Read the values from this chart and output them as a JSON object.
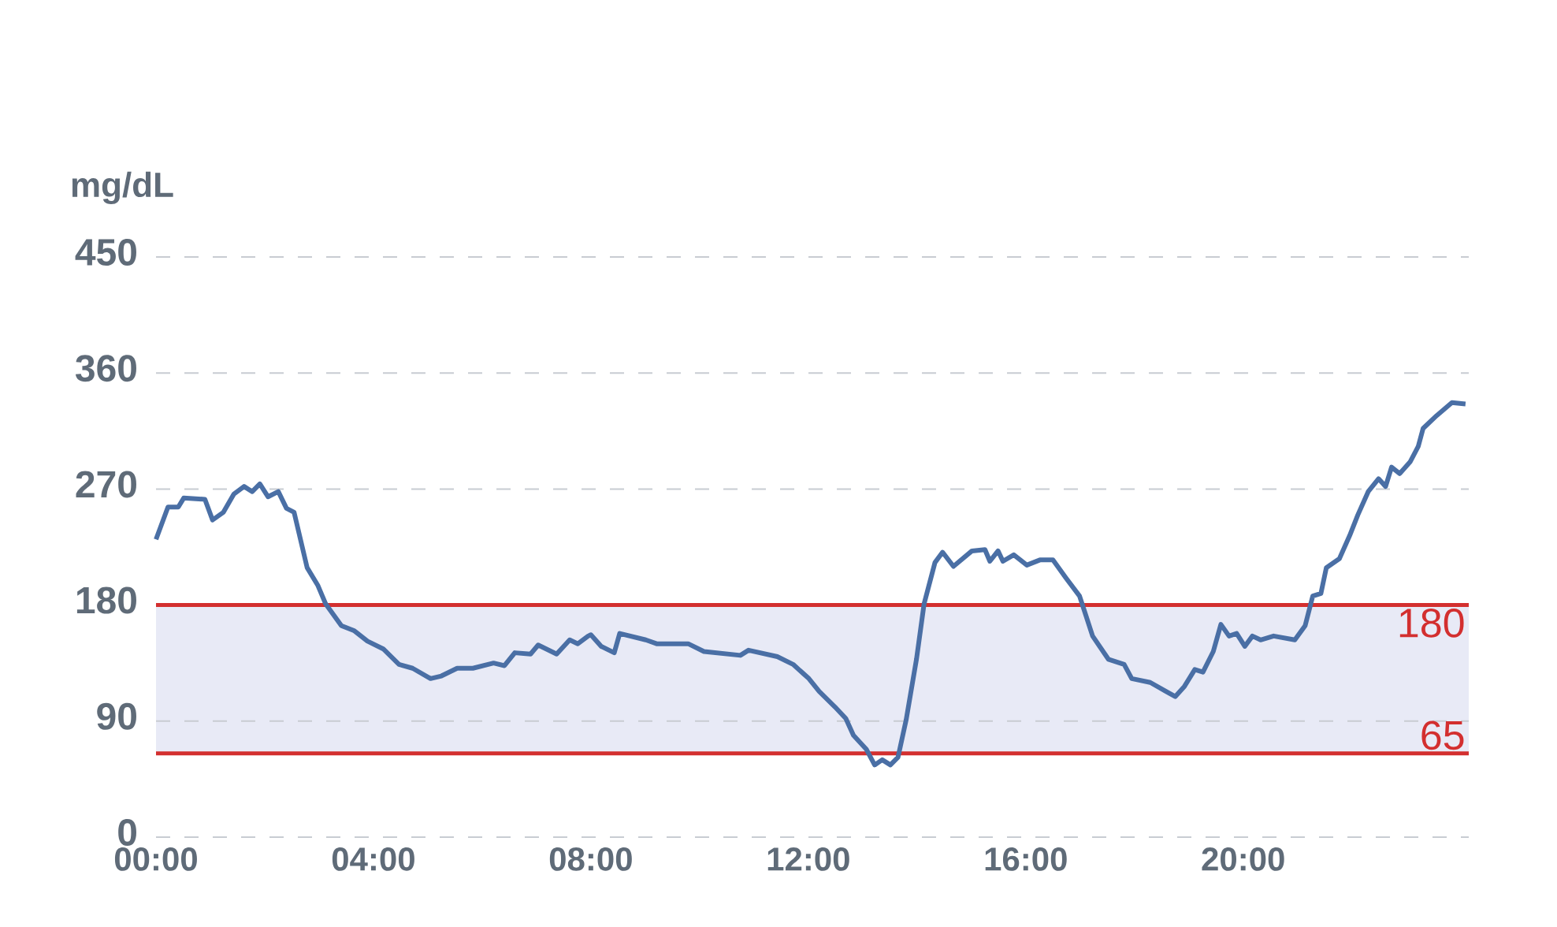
{
  "chart_data": {
    "type": "line",
    "ylabel": "mg/dL",
    "x": [
      0,
      0.22,
      0.41,
      0.51,
      0.9,
      1.04,
      1.24,
      1.43,
      1.62,
      1.77,
      1.91,
      2.06,
      2.25,
      2.4,
      2.54,
      2.78,
      2.98,
      3.12,
      3.41,
      3.65,
      3.89,
      4.18,
      4.47,
      4.72,
      5.05,
      5.25,
      5.54,
      5.83,
      6.21,
      6.41,
      6.6,
      6.89,
      7.03,
      7.37,
      7.61,
      7.76,
      7.95,
      8.0,
      8.19,
      8.43,
      8.53,
      9.01,
      9.21,
      9.79,
      10.08,
      10.75,
      10.9,
      11.43,
      11.72,
      12.01,
      12.2,
      12.49,
      12.69,
      12.83,
      13.07,
      13.22,
      13.36,
      13.51,
      13.65,
      13.8,
      13.99,
      14.13,
      14.33,
      14.47,
      14.67,
      15.01,
      15.25,
      15.34,
      15.49,
      15.58,
      15.78,
      16.02,
      16.26,
      16.5,
      16.74,
      16.99,
      17.23,
      17.52,
      17.81,
      17.95,
      18.29,
      18.58,
      18.75,
      18.92,
      19.11,
      19.26,
      19.45,
      19.59,
      19.74,
      19.88,
      20.03,
      20.17,
      20.32,
      20.56,
      20.95,
      21.14,
      21.28,
      21.43,
      21.53,
      21.77,
      21.96,
      22.11,
      22.3,
      22.49,
      22.62,
      22.73,
      22.88,
      23.07,
      23.22,
      23.31,
      23.56,
      23.84,
      24.09
    ],
    "series": [
      {
        "color": "#4a6fa5",
        "values": [
          231,
          256,
          256,
          263,
          262,
          246,
          252,
          266,
          272,
          268,
          274,
          264,
          268,
          255,
          252,
          209,
          195,
          181,
          164,
          160,
          152,
          146,
          134,
          131,
          123,
          125,
          131,
          131,
          135,
          133,
          143,
          142,
          149,
          142,
          153,
          150,
          156,
          157,
          148,
          143,
          158,
          153,
          150,
          150,
          144,
          141,
          145,
          140,
          134,
          123,
          113,
          101,
          92,
          79,
          68,
          56,
          60,
          56,
          62,
          91,
          138,
          181,
          213,
          221,
          210,
          222,
          223,
          214,
          222,
          214,
          219,
          211,
          215,
          215,
          201,
          187,
          156,
          138,
          134,
          123,
          120,
          113,
          109,
          117,
          130,
          128,
          144,
          165,
          156,
          158,
          148,
          156,
          153,
          156,
          153,
          164,
          187,
          189,
          209,
          216,
          234,
          250,
          268,
          278,
          272,
          287,
          282,
          291,
          303,
          317,
          327,
          337,
          336
        ]
      }
    ],
    "xlim": [
      0,
      24.15
    ],
    "ylim": [
      0,
      450
    ],
    "xticks": [
      {
        "value": 0,
        "label": "00:00"
      },
      {
        "value": 4,
        "label": "04:00"
      },
      {
        "value": 8,
        "label": "08:00"
      },
      {
        "value": 12,
        "label": "12:00"
      },
      {
        "value": 16,
        "label": "16:00"
      },
      {
        "value": 20,
        "label": "20:00"
      }
    ],
    "yticks": [
      0,
      90,
      180,
      270,
      360,
      450
    ],
    "grid": "y",
    "marker": "none",
    "line_style": "solid",
    "bands": [
      {
        "axis": "y",
        "from": 65,
        "to": 180,
        "color": "#e8eaf6"
      }
    ],
    "ref_lines": [
      {
        "axis": "y",
        "value": 180,
        "label": "180",
        "color": "#d32f2f"
      },
      {
        "axis": "y",
        "value": 65,
        "label": "65",
        "color": "#d32f2f"
      }
    ]
  }
}
